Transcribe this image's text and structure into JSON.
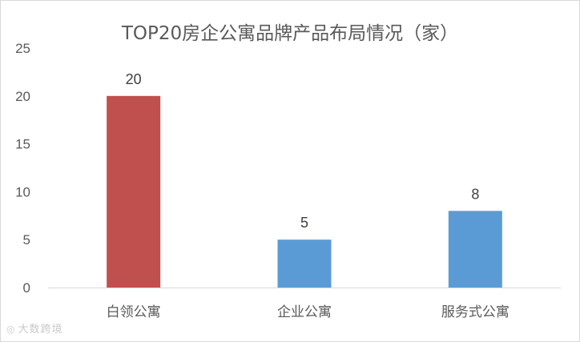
{
  "chart_data": {
    "type": "bar",
    "title": "TOP20房企公寓品牌产品布局情况（家）",
    "categories": [
      "白领公寓",
      "企业公寓",
      "服务式公寓"
    ],
    "values": [
      20,
      5,
      8
    ],
    "colors": [
      "#c0504d",
      "#5b9bd5",
      "#5b9bd5"
    ],
    "ylim": [
      0,
      25
    ],
    "yticks": [
      0,
      5,
      10,
      15,
      20,
      25
    ],
    "xlabel": "",
    "ylabel": "",
    "grid": false,
    "data_labels": true
  },
  "watermark": {
    "text": "大数跨境",
    "icon": "camera-logo-icon"
  }
}
